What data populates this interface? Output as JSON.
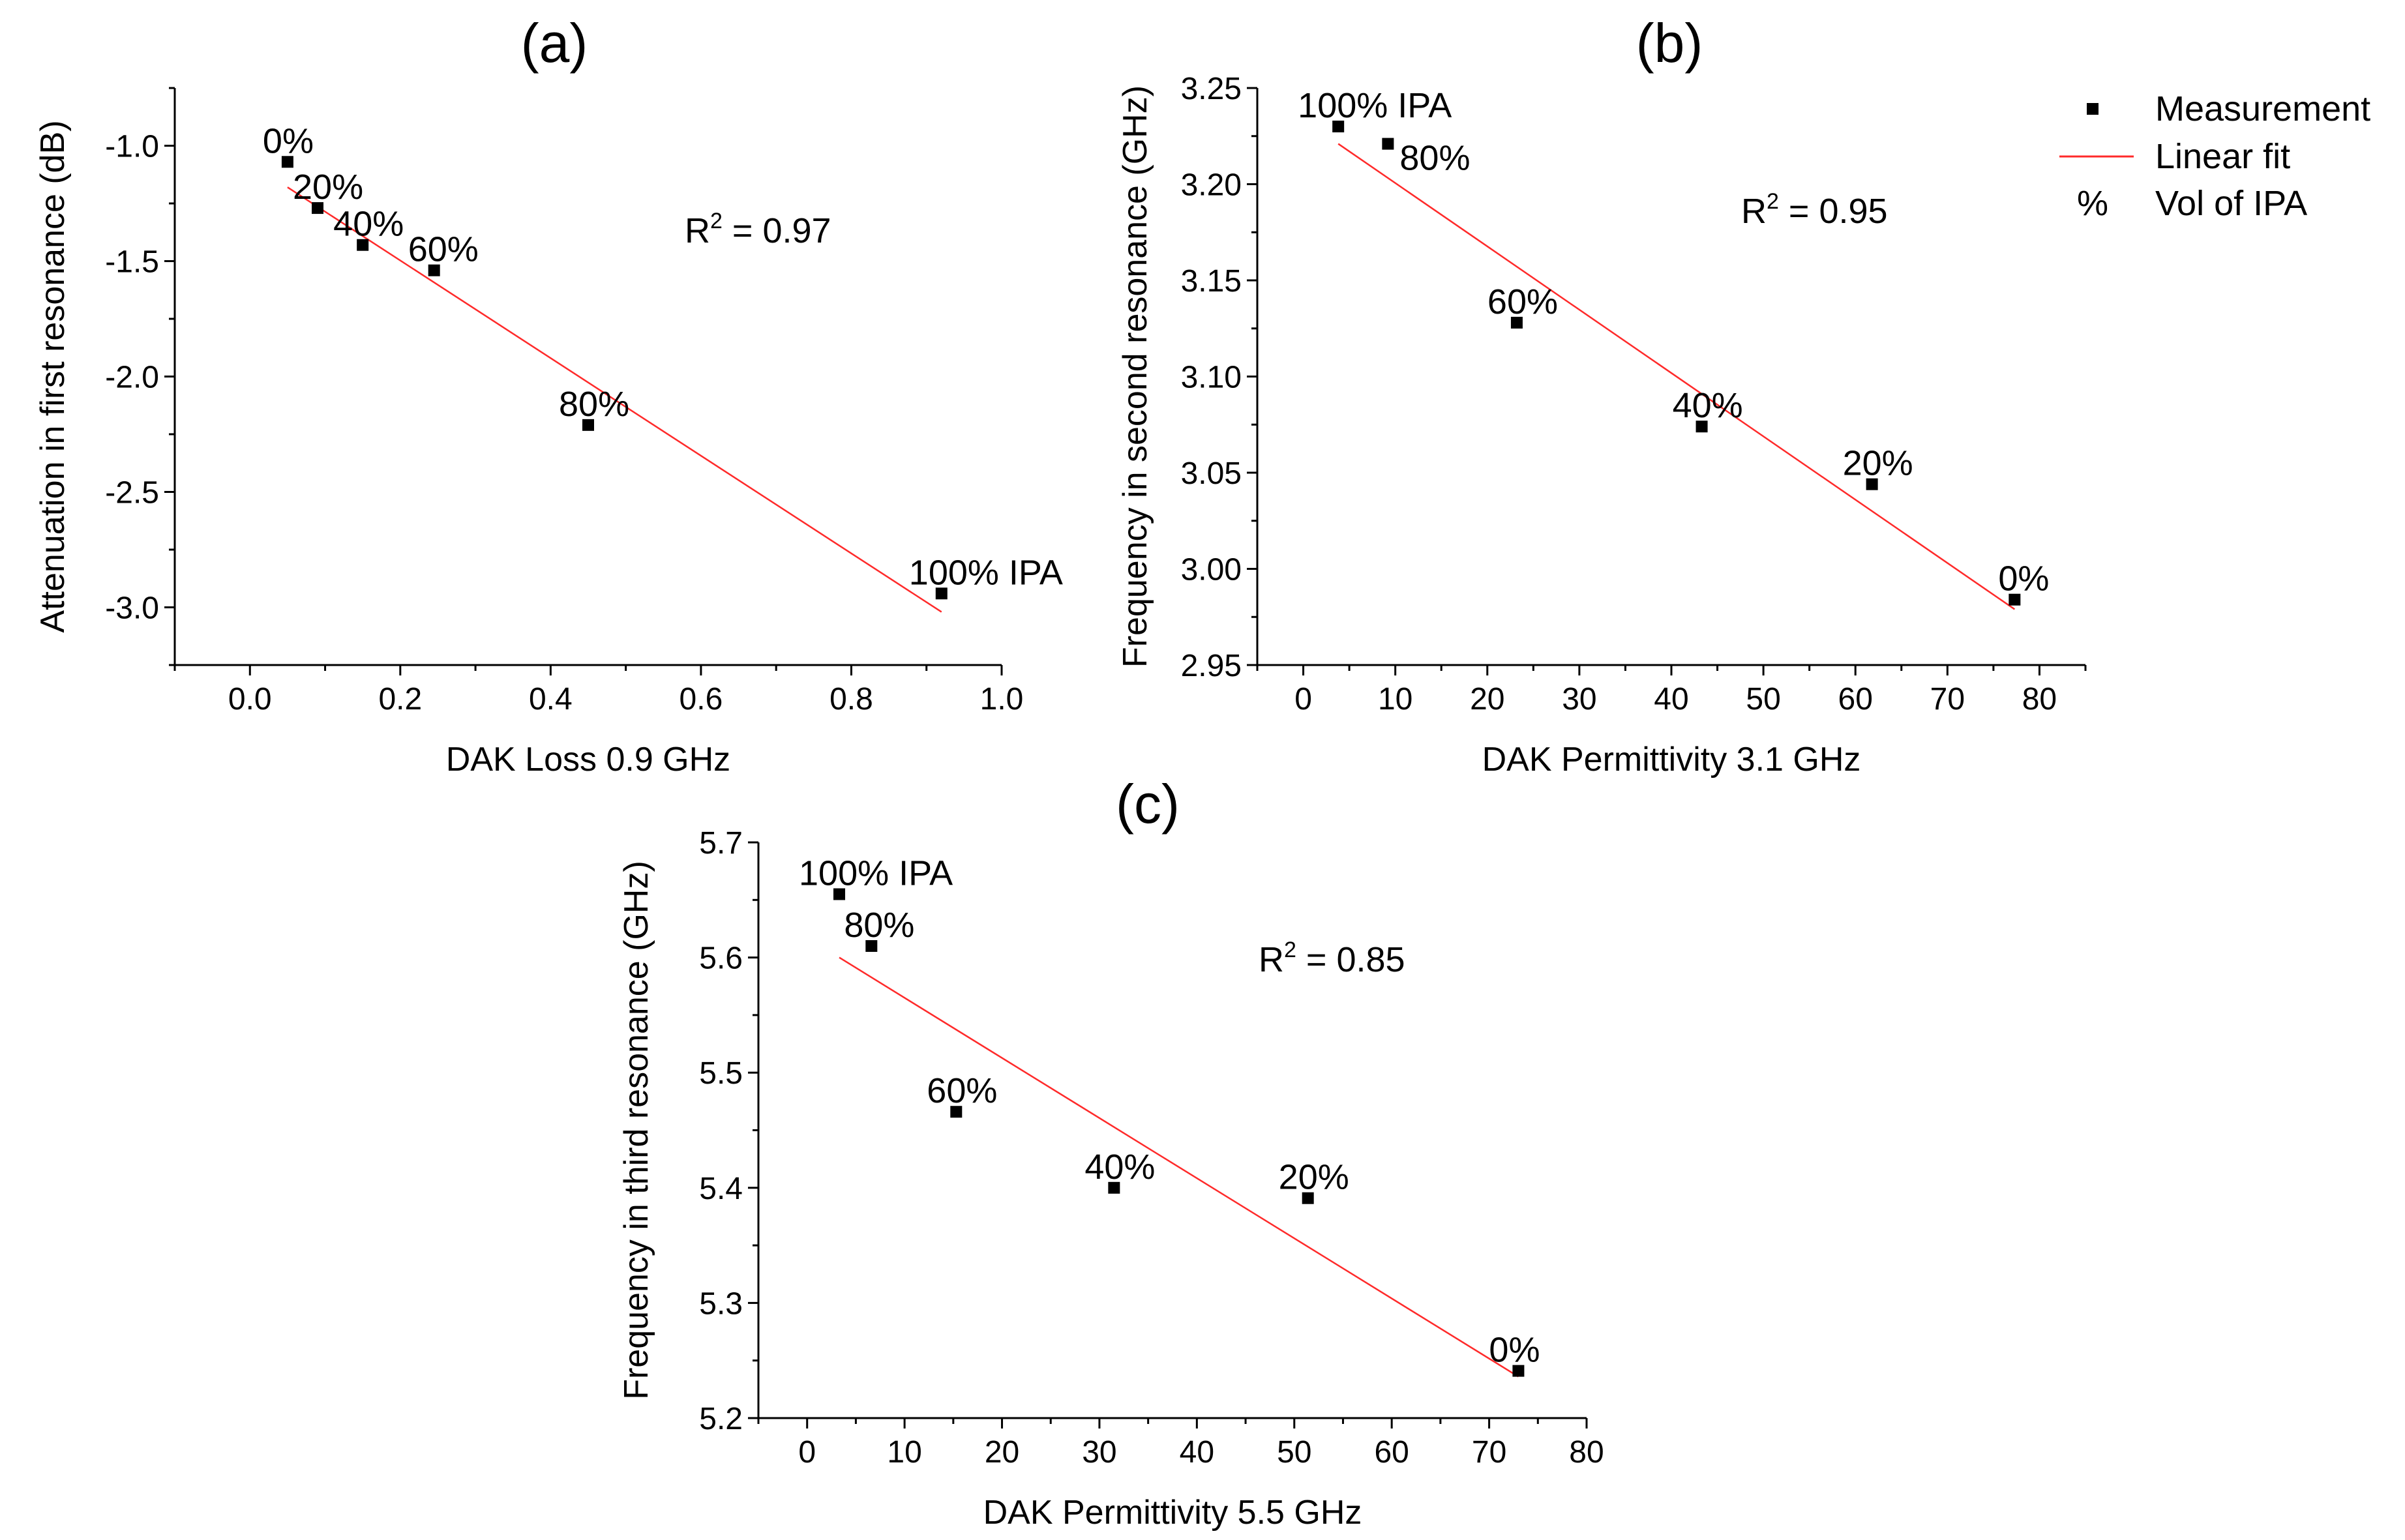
{
  "legend": {
    "items": [
      {
        "symbol": "marker",
        "label": "Measurement"
      },
      {
        "symbol": "line",
        "label": "Linear fit"
      },
      {
        "symbol": "%",
        "label": "Vol of IPA"
      }
    ]
  },
  "colors": {
    "marker": "#000000",
    "fit": "#ff2a2a"
  },
  "chart_data": [
    {
      "type": "scatter",
      "panel": "(a)",
      "xlabel": "DAK Loss 0.9 GHz",
      "ylabel": "Attenuation in first resonance (dB)",
      "xlim": [
        -0.1,
        1.0
      ],
      "ylim": [
        -3.25,
        -0.75
      ],
      "xticks": [
        0.0,
        0.2,
        0.4,
        0.6,
        0.8,
        1.0
      ],
      "xtick_labels": [
        "0.0",
        "0.2",
        "0.4",
        "0.6",
        "0.8",
        "1.0"
      ],
      "yticks": [
        -3.0,
        -2.5,
        -2.0,
        -1.5,
        -1.0
      ],
      "ytick_labels": [
        "-3.0",
        "-2.5",
        "-2.0",
        "-1.5",
        "-1.0"
      ],
      "r2_prefix": "R",
      "r2_sup": "2",
      "r2_value": " = 0.97",
      "points": [
        {
          "x": 0.05,
          "y": -1.07,
          "label": "0%"
        },
        {
          "x": 0.09,
          "y": -1.27,
          "label": "20%"
        },
        {
          "x": 0.15,
          "y": -1.43,
          "label": "40%"
        },
        {
          "x": 0.245,
          "y": -1.54,
          "label": "60%"
        },
        {
          "x": 0.45,
          "y": -2.21,
          "label": "80%"
        },
        {
          "x": 0.92,
          "y": -2.94,
          "label": "100% IPA"
        }
      ],
      "fit": {
        "x": [
          0.05,
          0.92
        ],
        "y": [
          -1.18,
          -3.02
        ]
      }
    },
    {
      "type": "scatter",
      "panel": "(b)",
      "xlabel": "DAK Permittivity 3.1 GHz",
      "ylabel": "Frequency in second resonance (GHz)",
      "xlim": [
        -5,
        85
      ],
      "ylim": [
        2.95,
        3.25
      ],
      "xticks": [
        0,
        10,
        20,
        30,
        40,
        50,
        60,
        70,
        80
      ],
      "xtick_labels": [
        "0",
        "10",
        "20",
        "30",
        "40",
        "50",
        "60",
        "70",
        "80"
      ],
      "yticks": [
        2.95,
        3.0,
        3.05,
        3.1,
        3.15,
        3.2,
        3.25
      ],
      "ytick_labels": [
        "2.95",
        "3.00",
        "3.05",
        "3.10",
        "3.15",
        "3.20",
        "3.25"
      ],
      "r2_prefix": "R",
      "r2_sup": "2",
      "r2_value": " = 0.95",
      "points": [
        {
          "x": 3.8,
          "y": 3.23,
          "label": "100% IPA"
        },
        {
          "x": 9.2,
          "y": 3.221,
          "label": "80%"
        },
        {
          "x": 23.2,
          "y": 3.128,
          "label": "60%"
        },
        {
          "x": 43.3,
          "y": 3.074,
          "label": "40%"
        },
        {
          "x": 61.8,
          "y": 3.044,
          "label": "20%"
        },
        {
          "x": 77.3,
          "y": 2.984,
          "label": "0%"
        }
      ],
      "fit": {
        "x": [
          3.8,
          77.3
        ],
        "y": [
          3.221,
          2.979
        ]
      }
    },
    {
      "type": "scatter",
      "panel": "(c)",
      "xlabel": "DAK Permittivity 5.5 GHz",
      "ylabel": "Frequency in third resonance (GHz)",
      "xlim": [
        -5,
        80
      ],
      "ylim": [
        5.2,
        5.7
      ],
      "xticks": [
        0,
        10,
        20,
        30,
        40,
        50,
        60,
        70,
        80
      ],
      "xtick_labels": [
        "0",
        "10",
        "20",
        "30",
        "40",
        "50",
        "60",
        "70",
        "80"
      ],
      "yticks": [
        5.2,
        5.3,
        5.4,
        5.5,
        5.6,
        5.7
      ],
      "ytick_labels": [
        "5.2",
        "5.3",
        "5.4",
        "5.5",
        "5.6",
        "5.7"
      ],
      "r2_prefix": "R",
      "r2_sup": "2",
      "r2_value": " = 0.85",
      "points": [
        {
          "x": 3.3,
          "y": 5.655,
          "label": "100% IPA"
        },
        {
          "x": 6.6,
          "y": 5.61,
          "label": "80%"
        },
        {
          "x": 15.3,
          "y": 5.466,
          "label": "60%"
        },
        {
          "x": 31.5,
          "y": 5.4,
          "label": "40%"
        },
        {
          "x": 51.4,
          "y": 5.391,
          "label": "20%"
        },
        {
          "x": 73.0,
          "y": 5.241,
          "label": "0%"
        }
      ],
      "fit": {
        "x": [
          3.3,
          73.0
        ],
        "y": [
          5.6,
          5.236
        ]
      }
    }
  ]
}
